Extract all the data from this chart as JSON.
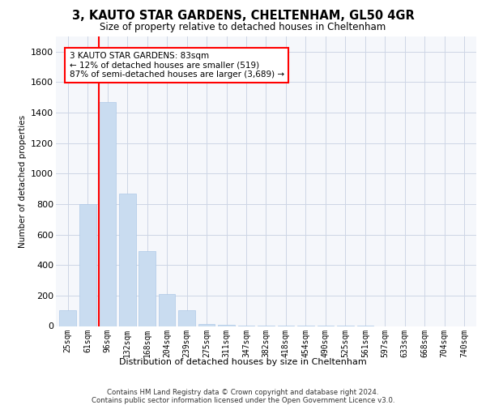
{
  "title": "3, KAUTO STAR GARDENS, CHELTENHAM, GL50 4GR",
  "subtitle": "Size of property relative to detached houses in Cheltenham",
  "xlabel": "Distribution of detached houses by size in Cheltenham",
  "ylabel": "Number of detached properties",
  "categories": [
    "25sqm",
    "61sqm",
    "96sqm",
    "132sqm",
    "168sqm",
    "204sqm",
    "239sqm",
    "275sqm",
    "311sqm",
    "347sqm",
    "382sqm",
    "418sqm",
    "454sqm",
    "490sqm",
    "525sqm",
    "561sqm",
    "597sqm",
    "633sqm",
    "668sqm",
    "704sqm",
    "740sqm"
  ],
  "values": [
    105,
    800,
    1470,
    870,
    490,
    210,
    105,
    15,
    10,
    5,
    3,
    2,
    2,
    1,
    1,
    1,
    0,
    0,
    0,
    0,
    0
  ],
  "bar_color": "#c9dcf0",
  "bar_edge_color": "#aec8e8",
  "property_line_color": "red",
  "annotation_text": "3 KAUTO STAR GARDENS: 83sqm\n← 12% of detached houses are smaller (519)\n87% of semi-detached houses are larger (3,689) →",
  "footer_text": "Contains HM Land Registry data © Crown copyright and database right 2024.\nContains public sector information licensed under the Open Government Licence v3.0.",
  "ylim": [
    0,
    1900
  ],
  "yticks": [
    0,
    200,
    400,
    600,
    800,
    1000,
    1200,
    1400,
    1600,
    1800
  ],
  "bg_color": "#f5f7fb",
  "grid_color": "#cdd5e5"
}
